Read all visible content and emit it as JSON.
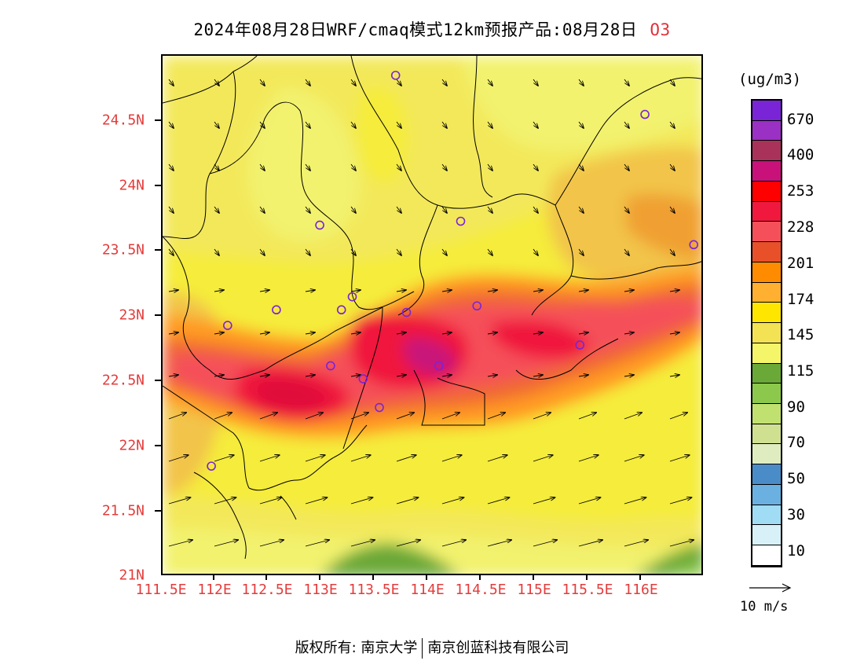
{
  "title": {
    "main": "2024年08月28日WRF/cmaq模式12km预报产品:08月28日",
    "pollutant": "O3"
  },
  "axes": {
    "lat_labels": [
      "24.5N",
      "24N",
      "23.5N",
      "23N",
      "22.5N",
      "22N",
      "21.5N",
      "21N"
    ],
    "lon_labels": [
      "111.5E",
      "112E",
      "112.5E",
      "113E",
      "113.5E",
      "114E",
      "114.5E",
      "115E",
      "115.5E",
      "116E"
    ]
  },
  "colorbar": {
    "unit": "(ug/m3)",
    "labels": [
      "670",
      "400",
      "253",
      "228",
      "201",
      "174",
      "145",
      "115",
      "90",
      "70",
      "50",
      "30",
      "10"
    ],
    "colors": [
      "#7a24d8",
      "#9b30c4",
      "#a8325a",
      "#c8127a",
      "#ff0000",
      "#f0183c",
      "#f5505a",
      "#e8502a",
      "#ff8c00",
      "#ffb030",
      "#ffe600",
      "#f2e254",
      "#f5f56a",
      "#6aa838",
      "#8cc84c",
      "#c0e070",
      "#cfe090",
      "#dfecc0",
      "#4a8cc8",
      "#6ab0e0",
      "#a0dcf4",
      "#d8f0f8",
      "#ffffff"
    ]
  },
  "wind_reference": {
    "label": "10 m/s"
  },
  "stations": [
    {
      "lon": 113.65,
      "lat": 24.85
    },
    {
      "lon": 115.95,
      "lat": 24.55
    },
    {
      "lon": 112.95,
      "lat": 23.7
    },
    {
      "lon": 114.25,
      "lat": 23.73
    },
    {
      "lon": 116.4,
      "lat": 23.55
    },
    {
      "lon": 113.25,
      "lat": 23.15
    },
    {
      "lon": 113.15,
      "lat": 23.05
    },
    {
      "lon": 112.55,
      "lat": 23.05
    },
    {
      "lon": 112.1,
      "lat": 22.93
    },
    {
      "lon": 113.75,
      "lat": 23.03
    },
    {
      "lon": 114.4,
      "lat": 23.08
    },
    {
      "lon": 115.35,
      "lat": 22.78
    },
    {
      "lon": 113.05,
      "lat": 22.62
    },
    {
      "lon": 113.35,
      "lat": 22.52
    },
    {
      "lon": 114.05,
      "lat": 22.62
    },
    {
      "lon": 113.5,
      "lat": 22.3
    },
    {
      "lon": 111.95,
      "lat": 21.85
    }
  ],
  "footer": {
    "left": "版权所有: 南京大学",
    "right": "南京创蓝科技有限公司"
  }
}
